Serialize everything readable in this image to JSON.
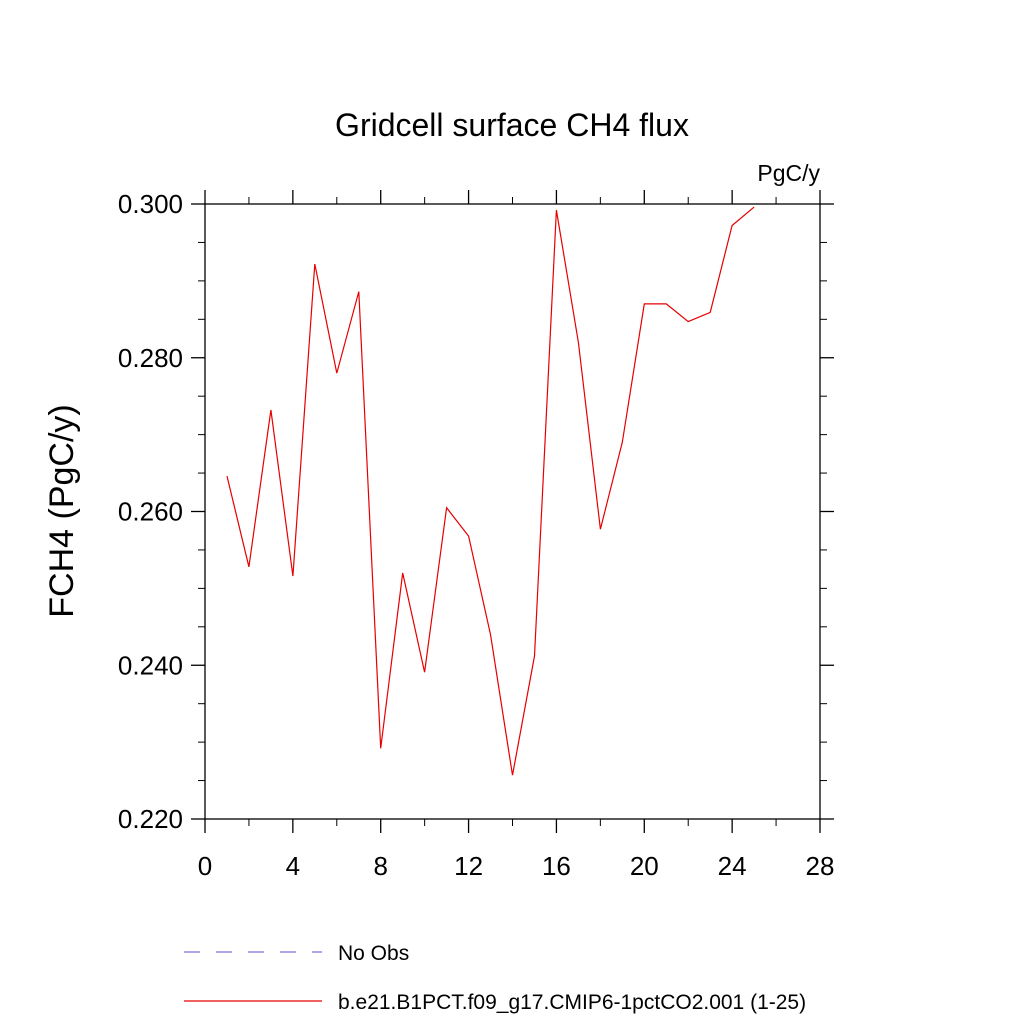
{
  "chart_data": {
    "type": "line",
    "title": "Gridcell surface CH4 flux",
    "units_label": "PgC/y",
    "ylabel": "FCH4  (PgC/y)",
    "xlabel": "",
    "xlim": [
      0,
      28
    ],
    "ylim": [
      0.22,
      0.3
    ],
    "x_ticks": [
      0,
      4,
      8,
      12,
      16,
      20,
      24,
      28
    ],
    "x_tick_labels": [
      "0",
      "4",
      "8",
      "12",
      "16",
      "20",
      "24",
      "28"
    ],
    "y_ticks": [
      0.22,
      0.24,
      0.26,
      0.28,
      0.3
    ],
    "y_tick_labels": [
      "0.220",
      "0.240",
      "0.260",
      "0.280",
      "0.300"
    ],
    "grid": false,
    "legend_placement": "bottom",
    "series": [
      {
        "name": "b.e21.B1PCT.f09_g17.CMIP6-1pctCO2.001 (1-25)",
        "color": "#e60000",
        "style": "solid",
        "x": [
          1,
          2,
          3,
          4,
          5,
          6,
          7,
          8,
          9,
          10,
          11,
          12,
          13,
          14,
          15,
          16,
          17,
          18,
          19,
          20,
          21,
          22,
          23,
          24,
          25
        ],
        "y": [
          0.2646,
          0.2528,
          0.2732,
          0.2516,
          0.2922,
          0.278,
          0.2886,
          0.2292,
          0.252,
          0.2391,
          0.2605,
          0.2568,
          0.244,
          0.2257,
          0.2412,
          0.2992,
          0.282,
          0.2577,
          0.269,
          0.287,
          0.287,
          0.2847,
          0.2859,
          0.2972,
          0.2996
        ]
      }
    ],
    "legend": [
      {
        "label": "No Obs",
        "color": "#7b6fd6",
        "style": "dashed"
      },
      {
        "label": "b.e21.B1PCT.f09_g17.CMIP6-1pctCO2.001 (1-25)",
        "color": "#e60000",
        "style": "solid"
      }
    ]
  }
}
